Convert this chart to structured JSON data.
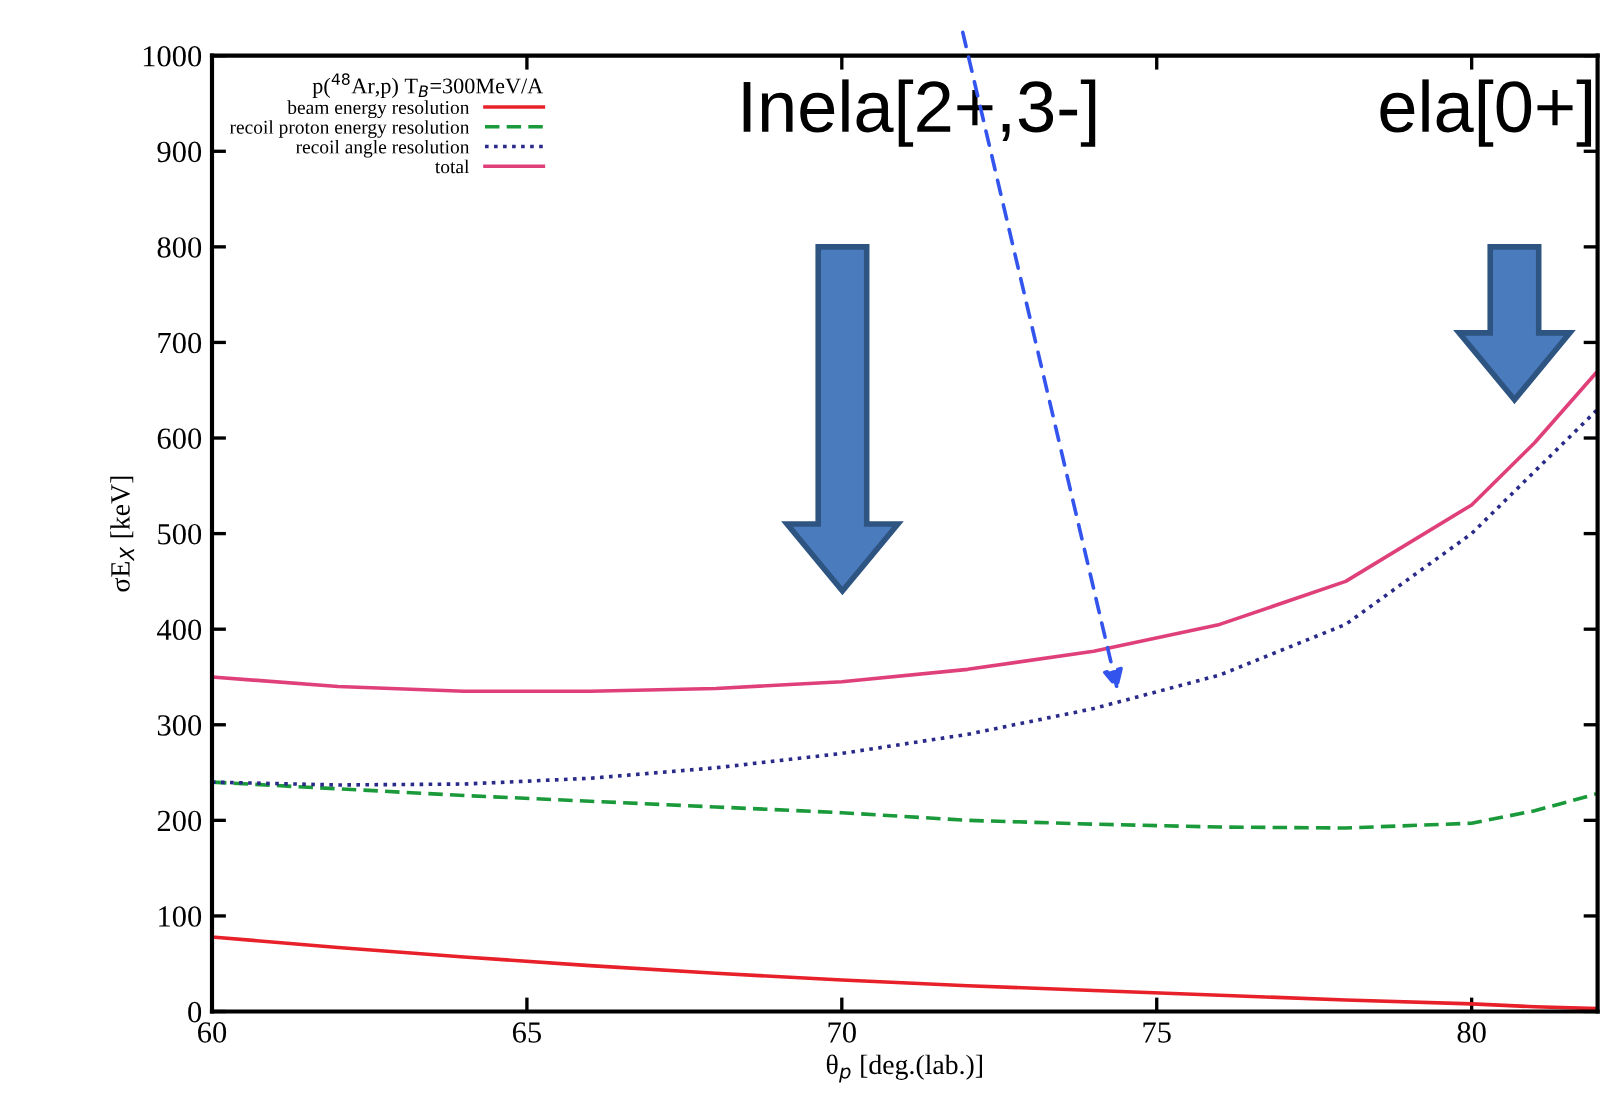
{
  "chart_data": {
    "type": "line",
    "legend_title": "p($^{48}$Ar,p) T$_{B}$=300MeV/A",
    "xlabel": "θ$_{p}$ [deg.(lab.)]",
    "ylabel": "σE$_{X}$ [keV]",
    "x": [
      60,
      62,
      64,
      66,
      68,
      70,
      72,
      74,
      76,
      78,
      80,
      81,
      82
    ],
    "series": [
      {
        "name": "beam energy resolution",
        "color": "#e8202a",
        "line_style": "solid",
        "values": [
          78,
          67,
          57,
          48,
          40,
          33,
          27,
          22,
          17,
          12,
          8,
          5,
          3
        ]
      },
      {
        "name": "recoil proton energy resolution",
        "color": "#1a9a3a",
        "line_style": "dashed",
        "values": [
          240,
          233,
          226,
          220,
          214,
          208,
          200,
          196,
          193,
          192,
          197,
          210,
          228
        ]
      },
      {
        "name": "recoil angle resolution",
        "color": "#2a2a8a",
        "line_style": "dotted",
        "values": [
          240,
          237,
          238,
          244,
          255,
          270,
          290,
          317,
          352,
          405,
          500,
          565,
          630
        ]
      },
      {
        "name": "total",
        "color": "#e0407a",
        "line_style": "solid",
        "values": [
          350,
          340,
          335,
          335,
          338,
          345,
          358,
          377,
          405,
          450,
          530,
          595,
          670
        ]
      }
    ],
    "xlim": [
      60,
      82
    ],
    "xticks": [
      60,
      65,
      70,
      75,
      80
    ],
    "ylim": [
      0,
      1000
    ],
    "yticks": [
      0,
      100,
      200,
      300,
      400,
      500,
      600,
      700,
      800,
      900,
      1000
    ],
    "grid": false,
    "legend": "top left",
    "annotations": [
      "Inela[2+,3-]",
      "ela[0+]"
    ]
  }
}
